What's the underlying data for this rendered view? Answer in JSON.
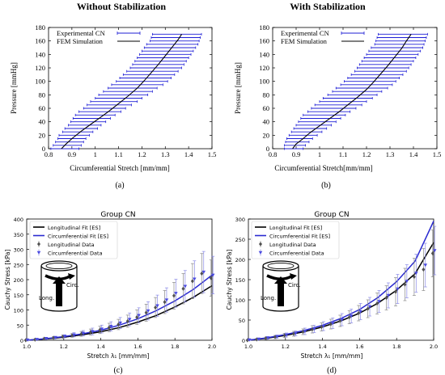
{
  "panels": {
    "a": {
      "title": "Without Stabilization",
      "label": "(a)",
      "xlabel": "Circumferential Stretch  [mm/mm]",
      "ylabel": "Pressure  [mmHg]",
      "legend": [
        "Experimental CN",
        "FEM Simulation"
      ]
    },
    "b": {
      "title": "With Stabilization",
      "label": "(b)",
      "xlabel": "Circumferential Stretch[mm/mm]",
      "ylabel": "Pressure  [mmHg]",
      "legend": [
        "Experimental CN",
        "FEM Simulation"
      ]
    },
    "c": {
      "title": "Group CN",
      "label": "(c)",
      "xlabel": "Stretch λ₁ [mm/mm]",
      "ylabel": "Cauchy Stress [kPa]",
      "legend": [
        "Longitudinal Fit [ES]",
        "Circumferential Fit [ES]",
        "Longitudinal Data",
        "Circumferential Data"
      ],
      "inset": [
        "Circ.",
        "Long."
      ]
    },
    "d": {
      "title": "Group CN",
      "label": "(d)",
      "xlabel": "Stretch λ₁ [mm/mm]",
      "ylabel": "Cauchy Stress [kPa]",
      "legend": [
        "Longitudinal Fit [ES]",
        "Circumferential Fit [ES]",
        "Longitudinal Data",
        "Circumferential Data"
      ],
      "inset": [
        "Circ.",
        "Long."
      ]
    }
  },
  "colors": {
    "experimental": "#1f1fd6",
    "fem": "#000000",
    "longitudinal": "#000000",
    "circumferential": "#2a2ad0",
    "long_data": "#505050",
    "circ_data": "#4a4ae0"
  },
  "chart_data": [
    {
      "id": "a",
      "type": "line",
      "xlim": [
        0.8,
        1.5
      ],
      "ylim": [
        0,
        180
      ],
      "xticks": [
        "0.8",
        "0.9",
        "1",
        "1.1",
        "1.2",
        "1.3",
        "1.4",
        "1.5"
      ],
      "yticks": [
        "0",
        "20",
        "40",
        "60",
        "80",
        "100",
        "120",
        "140",
        "160",
        "180"
      ],
      "series": [
        {
          "name": "Experimental CN",
          "style": "errorbar-x",
          "y": [
            0,
            5,
            10,
            15,
            20,
            25,
            30,
            35,
            40,
            45,
            50,
            55,
            60,
            65,
            70,
            75,
            80,
            85,
            90,
            95,
            100,
            105,
            110,
            115,
            120,
            125,
            130,
            135,
            140,
            145,
            150,
            155,
            160,
            165,
            170
          ],
          "xmean": [
            0.87,
            0.88,
            0.89,
            0.9,
            0.91,
            0.925,
            0.94,
            0.955,
            0.97,
            0.985,
            1.0,
            1.02,
            1.04,
            1.06,
            1.08,
            1.1,
            1.12,
            1.14,
            1.16,
            1.18,
            1.2,
            1.215,
            1.23,
            1.245,
            1.26,
            1.27,
            1.28,
            1.29,
            1.3,
            1.31,
            1.32,
            1.33,
            1.34,
            1.345,
            1.35
          ],
          "xerr": [
            0.06,
            0.06,
            0.06,
            0.06,
            0.065,
            0.065,
            0.07,
            0.07,
            0.075,
            0.08,
            0.085,
            0.09,
            0.09,
            0.095,
            0.1,
            0.1,
            0.105,
            0.105,
            0.105,
            0.11,
            0.11,
            0.11,
            0.11,
            0.11,
            0.11,
            0.11,
            0.11,
            0.11,
            0.11,
            0.11,
            0.11,
            0.11,
            0.105,
            0.105,
            0.105
          ]
        },
        {
          "name": "FEM Simulation",
          "style": "line",
          "x": [
            0.855,
            0.875,
            0.9,
            0.94,
            0.98,
            1.02,
            1.06,
            1.1,
            1.14,
            1.18,
            1.21,
            1.24,
            1.27,
            1.3,
            1.33,
            1.355,
            1.37
          ],
          "y": [
            0,
            7,
            15,
            26,
            36,
            46,
            56,
            67,
            78,
            90,
            101,
            113,
            125,
            138,
            151,
            162,
            170
          ]
        }
      ]
    },
    {
      "id": "b",
      "type": "line",
      "xlim": [
        0.8,
        1.5
      ],
      "ylim": [
        0,
        180
      ],
      "xticks": [
        "0.8",
        "0.9",
        "1",
        "1.1",
        "1.2",
        "1.3",
        "1.4",
        "1.5"
      ],
      "yticks": [
        "0",
        "20",
        "40",
        "60",
        "80",
        "100",
        "120",
        "140",
        "160",
        "180"
      ],
      "series": [
        {
          "name": "Experimental CN",
          "style": "errorbar-x",
          "y": [
            0,
            5,
            10,
            15,
            20,
            25,
            30,
            35,
            40,
            45,
            50,
            55,
            60,
            65,
            70,
            75,
            80,
            85,
            90,
            95,
            100,
            105,
            110,
            115,
            120,
            125,
            130,
            135,
            140,
            145,
            150,
            155,
            160,
            165,
            170
          ],
          "xmean": [
            0.89,
            0.895,
            0.905,
            0.915,
            0.93,
            0.945,
            0.96,
            0.975,
            0.99,
            1.005,
            1.02,
            1.04,
            1.06,
            1.08,
            1.1,
            1.12,
            1.14,
            1.16,
            1.18,
            1.2,
            1.215,
            1.23,
            1.245,
            1.26,
            1.27,
            1.28,
            1.29,
            1.3,
            1.31,
            1.32,
            1.33,
            1.34,
            1.345,
            1.35,
            1.355
          ],
          "xerr": [
            0.04,
            0.045,
            0.05,
            0.055,
            0.06,
            0.065,
            0.07,
            0.075,
            0.08,
            0.085,
            0.09,
            0.09,
            0.095,
            0.1,
            0.1,
            0.105,
            0.105,
            0.105,
            0.11,
            0.11,
            0.11,
            0.11,
            0.11,
            0.11,
            0.11,
            0.11,
            0.11,
            0.11,
            0.11,
            0.11,
            0.11,
            0.105,
            0.105,
            0.105,
            0.105
          ]
        },
        {
          "name": "FEM Simulation",
          "style": "line",
          "x": [
            0.885,
            0.9,
            0.93,
            0.96,
            1.0,
            1.04,
            1.08,
            1.12,
            1.16,
            1.2,
            1.23,
            1.26,
            1.29,
            1.32,
            1.35,
            1.37,
            1.39
          ],
          "y": [
            0,
            7,
            15,
            24,
            34,
            44,
            54,
            65,
            76,
            88,
            99,
            111,
            123,
            136,
            149,
            160,
            170
          ]
        }
      ]
    },
    {
      "id": "c",
      "type": "line",
      "xlim": [
        1.0,
        2.0
      ],
      "ylim": [
        0,
        400
      ],
      "xticks": [
        "1.0",
        "1.2",
        "1.4",
        "1.6",
        "1.8",
        "2.0"
      ],
      "yticks": [
        "0",
        "50",
        "100",
        "150",
        "200",
        "250",
        "300",
        "350",
        "400"
      ],
      "series": [
        {
          "name": "Longitudinal Fit [ES]",
          "style": "line",
          "x": [
            1.0,
            1.1,
            1.2,
            1.3,
            1.4,
            1.5,
            1.6,
            1.7,
            1.8,
            1.9,
            2.0
          ],
          "y": [
            0,
            4,
            10,
            18,
            28,
            42,
            60,
            82,
            110,
            142,
            180
          ]
        },
        {
          "name": "Circumferential Fit [ES]",
          "style": "line",
          "x": [
            1.0,
            1.1,
            1.2,
            1.3,
            1.4,
            1.5,
            1.6,
            1.7,
            1.8,
            1.9,
            2.0
          ],
          "y": [
            0,
            5,
            12,
            21,
            33,
            50,
            71,
            98,
            130,
            168,
            215
          ]
        },
        {
          "name": "Longitudinal Data",
          "style": "marker-errorbar",
          "x": [
            1.0,
            1.05,
            1.1,
            1.15,
            1.2,
            1.25,
            1.3,
            1.35,
            1.4,
            1.45,
            1.5,
            1.55,
            1.6,
            1.65,
            1.7,
            1.75,
            1.8,
            1.85,
            1.9,
            1.95,
            2.0
          ],
          "y": [
            0,
            2,
            5,
            8,
            12,
            16,
            21,
            27,
            34,
            42,
            52,
            63,
            76,
            91,
            108,
            126,
            147,
            170,
            195,
            220,
            205
          ],
          "err": [
            1,
            2,
            3,
            4,
            5,
            6,
            8,
            10,
            12,
            14,
            17,
            20,
            24,
            28,
            33,
            38,
            44,
            50,
            58,
            66,
            60
          ]
        },
        {
          "name": "Circumferential Data",
          "style": "marker-errorbar",
          "x": [
            1.0,
            1.05,
            1.1,
            1.15,
            1.2,
            1.25,
            1.3,
            1.35,
            1.4,
            1.45,
            1.5,
            1.55,
            1.6,
            1.65,
            1.7,
            1.75,
            1.8,
            1.85,
            1.9,
            1.95,
            2.0
          ],
          "y": [
            1,
            3,
            6,
            9,
            13,
            18,
            23,
            29,
            37,
            46,
            57,
            69,
            82,
            97,
            114,
            133,
            155,
            178,
            202,
            225,
            215
          ],
          "err": [
            1,
            2,
            3,
            4,
            5,
            7,
            9,
            11,
            13,
            15,
            18,
            21,
            25,
            30,
            35,
            40,
            46,
            52,
            60,
            68,
            62
          ]
        }
      ]
    },
    {
      "id": "d",
      "type": "line",
      "xlim": [
        1.0,
        2.0
      ],
      "ylim": [
        0,
        300
      ],
      "xticks": [
        "1.0",
        "1.2",
        "1.4",
        "1.6",
        "1.8",
        "2.0"
      ],
      "yticks": [
        "0",
        "50",
        "100",
        "150",
        "200",
        "250",
        "300"
      ],
      "series": [
        {
          "name": "Longitudinal Fit [ES]",
          "style": "line",
          "x": [
            1.0,
            1.1,
            1.2,
            1.3,
            1.4,
            1.5,
            1.6,
            1.7,
            1.8,
            1.9,
            2.0
          ],
          "y": [
            0,
            5,
            12,
            21,
            33,
            48,
            67,
            92,
            124,
            165,
            242
          ]
        },
        {
          "name": "Circumferential Fit [ES]",
          "style": "line",
          "x": [
            1.0,
            1.1,
            1.2,
            1.3,
            1.4,
            1.5,
            1.6,
            1.7,
            1.8,
            1.9,
            2.0
          ],
          "y": [
            0,
            6,
            14,
            24,
            37,
            54,
            76,
            106,
            145,
            196,
            295
          ]
        },
        {
          "name": "Longitudinal Data",
          "style": "marker-errorbar",
          "x": [
            1.0,
            1.05,
            1.1,
            1.15,
            1.2,
            1.25,
            1.3,
            1.35,
            1.4,
            1.45,
            1.5,
            1.55,
            1.6,
            1.65,
            1.7,
            1.75,
            1.8,
            1.85,
            1.9,
            1.95,
            2.0
          ],
          "y": [
            0,
            2,
            5,
            8,
            12,
            16,
            21,
            27,
            33,
            40,
            48,
            57,
            67,
            78,
            91,
            105,
            120,
            138,
            157,
            175,
            215
          ],
          "err": [
            1,
            2,
            3,
            4,
            5,
            6,
            7,
            9,
            10,
            12,
            14,
            16,
            19,
            22,
            26,
            30,
            35,
            40,
            46,
            52,
            58
          ]
        },
        {
          "name": "Circumferential Data",
          "style": "marker-errorbar",
          "x": [
            1.0,
            1.05,
            1.1,
            1.15,
            1.2,
            1.25,
            1.3,
            1.35,
            1.4,
            1.45,
            1.5,
            1.55,
            1.6,
            1.65,
            1.7,
            1.75,
            1.8,
            1.85,
            1.9,
            1.95,
            2.0
          ],
          "y": [
            1,
            3,
            6,
            9,
            13,
            17,
            22,
            28,
            35,
            42,
            51,
            60,
            71,
            83,
            96,
            111,
            127,
            146,
            166,
            186,
            222
          ],
          "err": [
            1,
            2,
            3,
            4,
            5,
            6,
            8,
            9,
            11,
            13,
            15,
            17,
            20,
            23,
            27,
            31,
            36,
            41,
            47,
            54,
            60
          ]
        }
      ]
    }
  ]
}
